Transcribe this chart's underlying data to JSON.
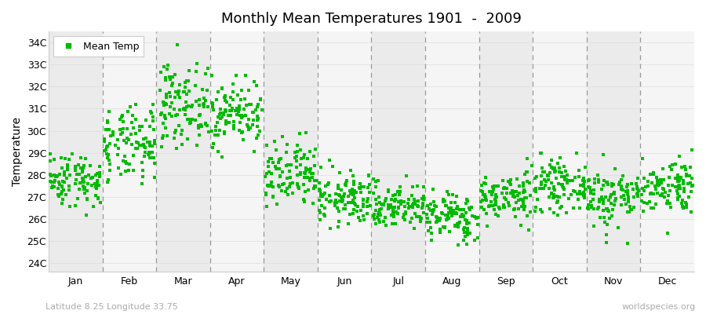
{
  "title": "Monthly Mean Temperatures 1901  -  2009",
  "ylabel": "Temperature",
  "subtitle_left": "Latitude 8.25 Longitude 33.75",
  "subtitle_right": "worldspecies.org",
  "y_ticks": [
    24,
    25,
    26,
    27,
    28,
    29,
    30,
    31,
    32,
    33,
    34
  ],
  "y_tick_labels": [
    "24C",
    "25C",
    "26C",
    "27C",
    "28C",
    "29C",
    "30C",
    "31C",
    "32C",
    "33C",
    "34C"
  ],
  "ylim": [
    23.6,
    34.5
  ],
  "months": [
    "Jan",
    "Feb",
    "Mar",
    "Apr",
    "May",
    "Jun",
    "Jul",
    "Aug",
    "Sep",
    "Oct",
    "Nov",
    "Dec"
  ],
  "dot_color": "#00bb00",
  "dot_size": 5,
  "background_color": "#ffffff",
  "band_colors_odd": "#ebebeb",
  "band_colors_even": "#f5f5f5",
  "n_years": 109,
  "month_params": {
    "Jan": {
      "mean": 27.8,
      "std": 0.62,
      "min_c": 26.0,
      "max_c": 29.5
    },
    "Feb": {
      "mean": 29.3,
      "std": 0.85,
      "min_c": 27.5,
      "max_c": 31.2
    },
    "Mar": {
      "mean": 31.2,
      "std": 0.9,
      "min_c": 29.2,
      "max_c": 33.9
    },
    "Apr": {
      "mean": 30.8,
      "std": 0.75,
      "min_c": 28.5,
      "max_c": 32.5
    },
    "May": {
      "mean": 27.9,
      "std": 0.8,
      "min_c": 26.5,
      "max_c": 31.1
    },
    "Jun": {
      "mean": 26.9,
      "std": 0.6,
      "min_c": 25.2,
      "max_c": 28.8
    },
    "Jul": {
      "mean": 26.6,
      "std": 0.52,
      "min_c": 24.8,
      "max_c": 28.2
    },
    "Aug": {
      "mean": 26.1,
      "std": 0.55,
      "min_c": 24.5,
      "max_c": 28.5
    },
    "Sep": {
      "mean": 27.0,
      "std": 0.55,
      "min_c": 25.5,
      "max_c": 29.0
    },
    "Oct": {
      "mean": 27.5,
      "std": 0.55,
      "min_c": 26.0,
      "max_c": 29.3
    },
    "Nov": {
      "mean": 27.0,
      "std": 0.7,
      "min_c": 24.5,
      "max_c": 29.5
    },
    "Dec": {
      "mean": 27.5,
      "std": 0.62,
      "min_c": 24.8,
      "max_c": 30.8
    }
  }
}
